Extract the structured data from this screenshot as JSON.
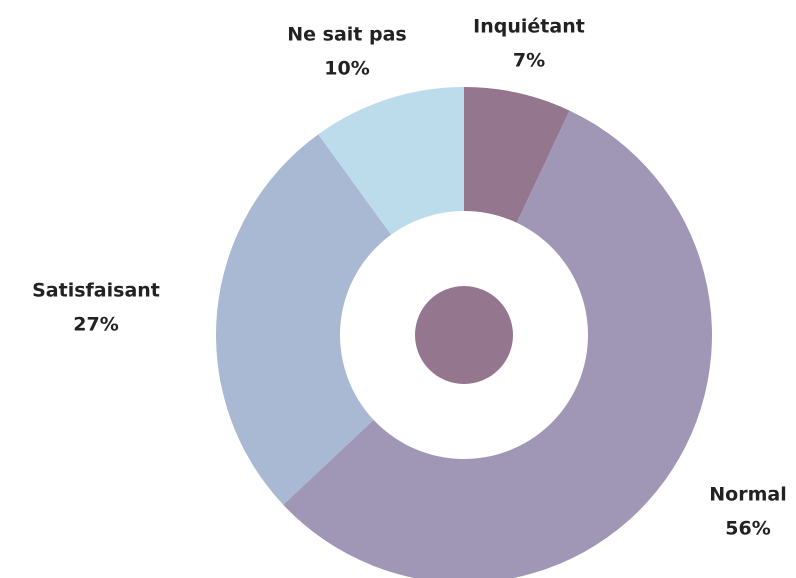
{
  "chart_data": {
    "type": "donut",
    "categories": [
      "Inquiétant",
      "Normal",
      "Satisfaisant",
      "Ne sait pas"
    ],
    "values": [
      7,
      56,
      27,
      10
    ],
    "value_labels": [
      "7%",
      "56%",
      "27%",
      "10%"
    ],
    "colors": [
      "#94768f",
      "#a097b6",
      "#a9b9d3",
      "#bcdcec"
    ]
  }
}
